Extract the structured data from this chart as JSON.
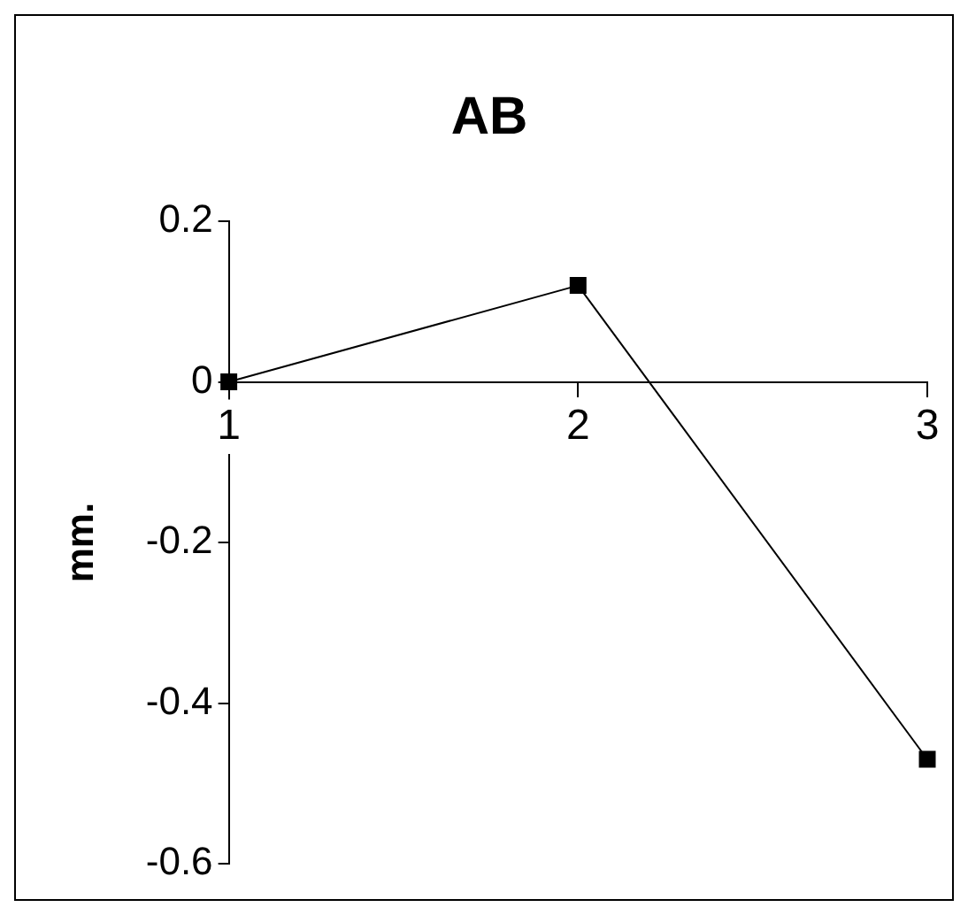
{
  "chart_data": {
    "type": "line",
    "title": "AB",
    "ylabel": "mm.",
    "x": [
      1,
      2,
      3
    ],
    "series": [
      {
        "color": "#000000",
        "values": [
          0,
          0.12,
          -0.47
        ]
      }
    ],
    "xlim": [
      1,
      3
    ],
    "xticks": [
      1,
      2,
      3
    ],
    "ylim": [
      -0.6,
      0.2
    ],
    "yticks": [
      -0.6,
      -0.4,
      -0.2,
      0,
      0.2
    ],
    "grid": false,
    "legend": false,
    "marker": "square",
    "line_style": "solid"
  }
}
